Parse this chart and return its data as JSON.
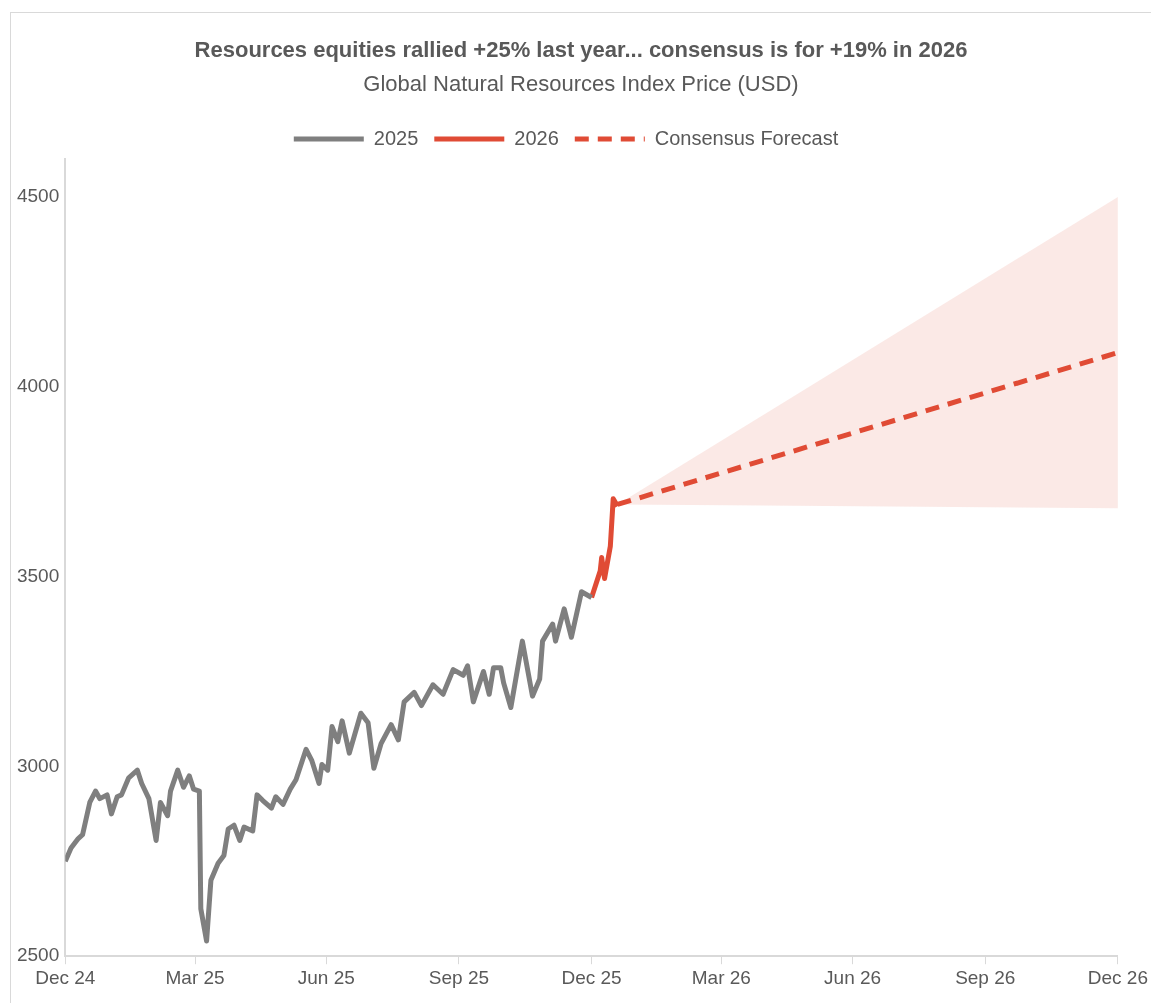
{
  "chart_data": {
    "type": "line",
    "title": "Resources equities rallied +25% last year... consensus is for +19% in 2026",
    "subtitle": "Global Natural Resources Index Price (USD)",
    "series": [
      {
        "name": "2025",
        "color": "#7f7f7f",
        "x": [
          "2024-12-31",
          "2025-01-04",
          "2025-01-09",
          "2025-01-12",
          "2025-01-17",
          "2025-01-21",
          "2025-01-24",
          "2025-01-29",
          "2025-02-01",
          "2025-02-05",
          "2025-02-08",
          "2025-02-13",
          "2025-02-19",
          "2025-02-22",
          "2025-02-27",
          "2025-03-04",
          "2025-03-07",
          "2025-03-12",
          "2025-03-14",
          "2025-03-19",
          "2025-03-23",
          "2025-03-27",
          "2025-03-30",
          "2025-04-03",
          "2025-04-04",
          "2025-04-08",
          "2025-04-11",
          "2025-04-16",
          "2025-04-20",
          "2025-04-23",
          "2025-04-27",
          "2025-05-01",
          "2025-05-04",
          "2025-05-10",
          "2025-05-13",
          "2025-05-17",
          "2025-05-23",
          "2025-05-26",
          "2025-05-31",
          "2025-06-05",
          "2025-06-09",
          "2025-06-16",
          "2025-06-20",
          "2025-06-25",
          "2025-06-27",
          "2025-07-01",
          "2025-07-04",
          "2025-07-08",
          "2025-07-11",
          "2025-07-16",
          "2025-07-24",
          "2025-07-29",
          "2025-08-02",
          "2025-08-07",
          "2025-08-14",
          "2025-08-19",
          "2025-08-23",
          "2025-08-30",
          "2025-09-04",
          "2025-09-12",
          "2025-09-19",
          "2025-09-26",
          "2025-10-03",
          "2025-10-06",
          "2025-10-10",
          "2025-10-17",
          "2025-10-21",
          "2025-10-24",
          "2025-10-29",
          "2025-10-31",
          "2025-11-05",
          "2025-11-13",
          "2025-11-20",
          "2025-11-25",
          "2025-11-27",
          "2025-12-04",
          "2025-12-06",
          "2025-12-12",
          "2025-12-17",
          "2025-12-24",
          "2025-12-31"
        ],
        "values": [
          2750,
          2785,
          2810,
          2820,
          2905,
          2935,
          2915,
          2925,
          2875,
          2920,
          2925,
          2970,
          2990,
          2955,
          2915,
          2805,
          2905,
          2870,
          2935,
          2990,
          2945,
          2975,
          2940,
          2935,
          2625,
          2540,
          2700,
          2745,
          2765,
          2835,
          2845,
          2805,
          2840,
          2830,
          2925,
          2910,
          2890,
          2920,
          2900,
          2940,
          2965,
          3045,
          3015,
          2955,
          3005,
          2990,
          3105,
          3065,
          3120,
          3035,
          3140,
          3115,
          2995,
          3060,
          3110,
          3070,
          3170,
          3195,
          3160,
          3215,
          3190,
          3255,
          3240,
          3265,
          3170,
          3250,
          3190,
          3260,
          3260,
          3220,
          3155,
          3330,
          3185,
          3230,
          3330,
          3375,
          3330,
          3415,
          3340,
          3460,
          3445
        ]
      },
      {
        "name": "2026",
        "color": "#e04b35",
        "x": [
          "2025-12-31",
          "2026-01-06",
          "2026-01-07",
          "2026-01-09",
          "2026-01-13",
          "2026-01-15",
          "2026-01-18"
        ],
        "values": [
          3445,
          3515,
          3550,
          3495,
          3580,
          3705,
          3685
        ]
      },
      {
        "name": "Consensus Forecast",
        "color": "#e04b35",
        "line_style": "dashed",
        "x": [
          "2026-01-18",
          "2026-12-31"
        ],
        "values": [
          3690,
          4090
        ],
        "lower": [
          3690,
          3680
        ],
        "upper": [
          3690,
          4500
        ]
      }
    ],
    "xlim": [
      "2024-12-31",
      "2026-12-31"
    ],
    "xticks": [
      {
        "value": "2024-12-31",
        "label": "Dec 24"
      },
      {
        "value": "2025-03-31",
        "label": "Mar 25"
      },
      {
        "value": "2025-06-30",
        "label": "Jun 25"
      },
      {
        "value": "2025-09-30",
        "label": "Sep 25"
      },
      {
        "value": "2025-12-31",
        "label": "Dec 25"
      },
      {
        "value": "2026-03-31",
        "label": "Mar 26"
      },
      {
        "value": "2026-06-30",
        "label": "Jun 26"
      },
      {
        "value": "2026-09-30",
        "label": "Sep 26"
      },
      {
        "value": "2026-12-31",
        "label": "Dec 26"
      }
    ],
    "ylim": [
      2500,
      4600
    ],
    "yticks": [
      2500,
      3000,
      3500,
      4000,
      4500
    ],
    "grid": false,
    "legend": "top",
    "marker": "none"
  }
}
